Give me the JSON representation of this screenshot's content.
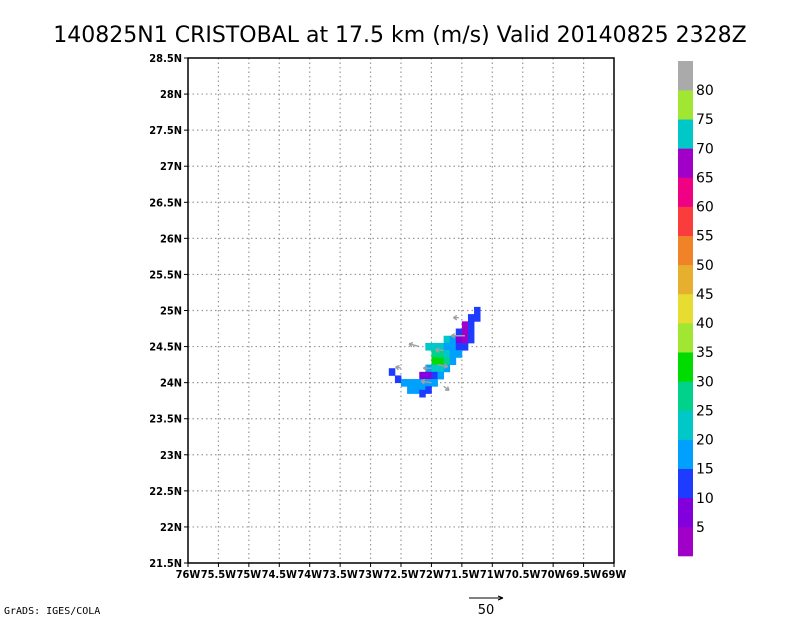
{
  "chart_data": {
    "type": "heatmap",
    "title": "140825N1 CRISTOBAL at 17.5 km (m/s) Valid 20140825 2328Z",
    "xlabel": "",
    "ylabel": "",
    "xlim": [
      -76.0,
      -69.0
    ],
    "ylim": [
      21.5,
      28.5
    ],
    "grid": true,
    "x_ticks": [
      {
        "value": -76.0,
        "label": "76W"
      },
      {
        "value": -75.5,
        "label": "75.5W"
      },
      {
        "value": -75.0,
        "label": "75W"
      },
      {
        "value": -74.5,
        "label": "74.5W"
      },
      {
        "value": -74.0,
        "label": "74W"
      },
      {
        "value": -73.5,
        "label": "73.5W"
      },
      {
        "value": -73.0,
        "label": "73W"
      },
      {
        "value": -72.5,
        "label": "72.5W"
      },
      {
        "value": -72.0,
        "label": "72W"
      },
      {
        "value": -71.5,
        "label": "71.5W"
      },
      {
        "value": -71.0,
        "label": "71W"
      },
      {
        "value": -70.5,
        "label": "70.5W"
      },
      {
        "value": -70.0,
        "label": "70W"
      },
      {
        "value": -69.5,
        "label": "69.5W"
      },
      {
        "value": -69.0,
        "label": "69W"
      }
    ],
    "y_ticks": [
      {
        "value": 21.5,
        "label": "21.5N"
      },
      {
        "value": 22.0,
        "label": "22N"
      },
      {
        "value": 22.5,
        "label": "22.5N"
      },
      {
        "value": 23.0,
        "label": "23N"
      },
      {
        "value": 23.5,
        "label": "23.5N"
      },
      {
        "value": 24.0,
        "label": "24N"
      },
      {
        "value": 24.5,
        "label": "24.5N"
      },
      {
        "value": 25.0,
        "label": "25N"
      },
      {
        "value": 25.5,
        "label": "25.5N"
      },
      {
        "value": 26.0,
        "label": "26N"
      },
      {
        "value": 26.5,
        "label": "26.5N"
      },
      {
        "value": 27.0,
        "label": "27N"
      },
      {
        "value": 27.5,
        "label": "27.5N"
      },
      {
        "value": 28.0,
        "label": "28N"
      },
      {
        "value": 28.5,
        "label": "28.5N"
      }
    ],
    "colorbar": {
      "tick_labels": [
        "5",
        "10",
        "15",
        "20",
        "25",
        "30",
        "35",
        "40",
        "45",
        "50",
        "55",
        "60",
        "65",
        "70",
        "75",
        "80"
      ],
      "levels": [
        {
          "min": 0,
          "max": 5,
          "color": "#a000c8"
        },
        {
          "min": 5,
          "max": 10,
          "color": "#8200dc"
        },
        {
          "min": 10,
          "max": 15,
          "color": "#1e3cff"
        },
        {
          "min": 15,
          "max": 20,
          "color": "#00a0ff"
        },
        {
          "min": 20,
          "max": 25,
          "color": "#00c8c8"
        },
        {
          "min": 25,
          "max": 30,
          "color": "#00d28c"
        },
        {
          "min": 30,
          "max": 35,
          "color": "#00dc00"
        },
        {
          "min": 35,
          "max": 40,
          "color": "#a0e632"
        },
        {
          "min": 40,
          "max": 45,
          "color": "#e6dc32"
        },
        {
          "min": 45,
          "max": 50,
          "color": "#e6af2d"
        },
        {
          "min": 50,
          "max": 55,
          "color": "#f08228"
        },
        {
          "min": 55,
          "max": 60,
          "color": "#fa3c3c"
        },
        {
          "min": 60,
          "max": 65,
          "color": "#f00082"
        },
        {
          "min": 65,
          "max": 70,
          "color": "#a000c8"
        },
        {
          "min": 70,
          "max": 75,
          "color": "#00c8c8"
        },
        {
          "min": 75,
          "max": 80,
          "color": "#a0e632"
        },
        {
          "min": 80,
          "max": 85,
          "color": "#aaaaaa"
        }
      ]
    },
    "cell_size_deg": 0.1,
    "cells": [
      {
        "lon": -71.25,
        "lat": 25.0,
        "value": 12
      },
      {
        "lon": -71.35,
        "lat": 24.9,
        "value": 12
      },
      {
        "lon": -71.25,
        "lat": 24.9,
        "value": 12
      },
      {
        "lon": -71.45,
        "lat": 24.8,
        "value": 3
      },
      {
        "lon": -71.35,
        "lat": 24.8,
        "value": 12
      },
      {
        "lon": -71.55,
        "lat": 24.7,
        "value": 12
      },
      {
        "lon": -71.45,
        "lat": 24.7,
        "value": 3
      },
      {
        "lon": -71.35,
        "lat": 24.7,
        "value": 12
      },
      {
        "lon": -71.75,
        "lat": 24.6,
        "value": 22
      },
      {
        "lon": -71.65,
        "lat": 24.6,
        "value": 17
      },
      {
        "lon": -71.55,
        "lat": 24.6,
        "value": 8
      },
      {
        "lon": -71.45,
        "lat": 24.6,
        "value": 3
      },
      {
        "lon": -71.35,
        "lat": 24.6,
        "value": 12
      },
      {
        "lon": -72.05,
        "lat": 24.5,
        "value": 22
      },
      {
        "lon": -71.95,
        "lat": 24.5,
        "value": 22
      },
      {
        "lon": -71.85,
        "lat": 24.5,
        "value": 22
      },
      {
        "lon": -71.75,
        "lat": 24.5,
        "value": 17
      },
      {
        "lon": -71.65,
        "lat": 24.5,
        "value": 17
      },
      {
        "lon": -71.55,
        "lat": 24.5,
        "value": 12
      },
      {
        "lon": -71.45,
        "lat": 24.5,
        "value": 12
      },
      {
        "lon": -71.95,
        "lat": 24.4,
        "value": 27
      },
      {
        "lon": -71.85,
        "lat": 24.4,
        "value": 27
      },
      {
        "lon": -71.75,
        "lat": 24.4,
        "value": 22
      },
      {
        "lon": -71.65,
        "lat": 24.4,
        "value": 17
      },
      {
        "lon": -71.55,
        "lat": 24.4,
        "value": 17
      },
      {
        "lon": -71.95,
        "lat": 24.3,
        "value": 32
      },
      {
        "lon": -71.85,
        "lat": 24.3,
        "value": 32
      },
      {
        "lon": -71.75,
        "lat": 24.3,
        "value": 27
      },
      {
        "lon": -71.65,
        "lat": 24.3,
        "value": 17
      },
      {
        "lon": -72.05,
        "lat": 24.2,
        "value": 17
      },
      {
        "lon": -71.95,
        "lat": 24.2,
        "value": 22
      },
      {
        "lon": -71.85,
        "lat": 24.2,
        "value": 22
      },
      {
        "lon": -71.75,
        "lat": 24.2,
        "value": 17
      },
      {
        "lon": -72.65,
        "lat": 24.15,
        "value": 12
      },
      {
        "lon": -72.15,
        "lat": 24.1,
        "value": 8
      },
      {
        "lon": -72.05,
        "lat": 24.1,
        "value": 8
      },
      {
        "lon": -71.95,
        "lat": 24.1,
        "value": 12
      },
      {
        "lon": -71.85,
        "lat": 24.1,
        "value": 17
      },
      {
        "lon": -72.55,
        "lat": 24.05,
        "value": 12
      },
      {
        "lon": -72.45,
        "lat": 24.0,
        "value": 17
      },
      {
        "lon": -72.35,
        "lat": 24.0,
        "value": 17
      },
      {
        "lon": -72.25,
        "lat": 24.0,
        "value": 17
      },
      {
        "lon": -72.15,
        "lat": 24.0,
        "value": 17
      },
      {
        "lon": -72.05,
        "lat": 24.0,
        "value": 17
      },
      {
        "lon": -71.95,
        "lat": 24.0,
        "value": 17
      },
      {
        "lon": -72.35,
        "lat": 23.9,
        "value": 17
      },
      {
        "lon": -72.25,
        "lat": 23.9,
        "value": 17
      },
      {
        "lon": -72.15,
        "lat": 23.9,
        "value": 17
      },
      {
        "lon": -72.05,
        "lat": 23.9,
        "value": 12
      },
      {
        "lon": -72.15,
        "lat": 23.85,
        "value": 12
      }
    ],
    "vectors": [
      {
        "lon": -71.55,
        "lat": 24.9,
        "u": -8,
        "v": 0
      },
      {
        "lon": -71.45,
        "lat": 24.65,
        "u": -20,
        "v": 0
      },
      {
        "lon": -72.2,
        "lat": 24.5,
        "u": -15,
        "v": 4
      },
      {
        "lon": -71.8,
        "lat": 24.45,
        "u": -12,
        "v": 0
      },
      {
        "lon": -71.9,
        "lat": 24.25,
        "u": 15,
        "v": -3
      },
      {
        "lon": -72.0,
        "lat": 24.2,
        "u": -12,
        "v": 0
      },
      {
        "lon": -72.5,
        "lat": 24.2,
        "u": -8,
        "v": 2
      },
      {
        "lon": -72.0,
        "lat": 24.0,
        "u": -15,
        "v": 2
      },
      {
        "lon": -71.8,
        "lat": 23.95,
        "u": 8,
        "v": -6
      }
    ],
    "vector_reference": {
      "value": 50,
      "label": "50"
    }
  },
  "credit": "GrADS: IGES/COLA"
}
